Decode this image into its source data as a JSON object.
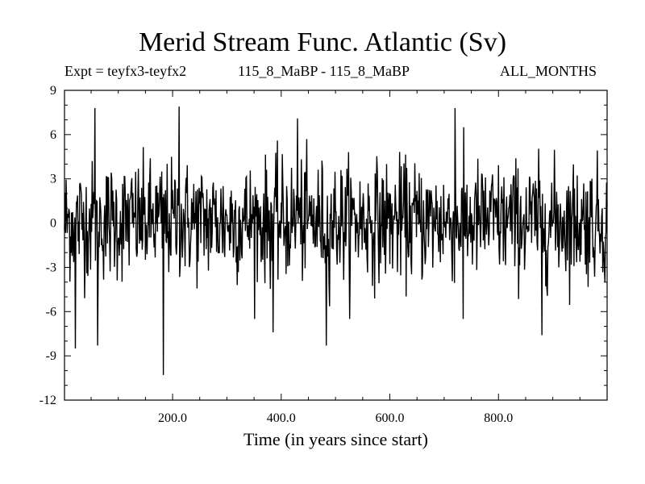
{
  "chart_data": {
    "type": "line",
    "title": "Merid Stream Func. Atlantic (Sv)",
    "subtitle_left": "Expt = teyfx3-teyfx2",
    "subtitle_center": "115_8_MaBP - 115_8_MaBP",
    "subtitle_right": "ALL_MONTHS",
    "xlabel": "Time (in years since start)",
    "ylabel": "",
    "xlim": [
      1,
      1000
    ],
    "ylim": [
      -12,
      9
    ],
    "x_ticks": [
      200,
      400,
      600,
      800
    ],
    "x_tick_labels": [
      "200.0",
      "400.0",
      "600.0",
      "800.0"
    ],
    "y_ticks": [
      9,
      6,
      3,
      0,
      -3,
      -6,
      -9,
      -12
    ],
    "y_tick_labels": [
      "9",
      "6",
      "3",
      "0",
      "-3",
      "-6",
      "-9",
      "-12"
    ],
    "zero_line": true,
    "series": [
      {
        "name": "Merid Stream Func. Atlantic",
        "n_points": 1000,
        "typical_std": 2.0,
        "min": -10.3,
        "max": 7.9,
        "extremes": [
          {
            "x": 21,
            "y": -8.5
          },
          {
            "x": 57,
            "y": 7.8
          },
          {
            "x": 62,
            "y": -8.3
          },
          {
            "x": 183,
            "y": -10.3
          },
          {
            "x": 212,
            "y": 7.9
          },
          {
            "x": 385,
            "y": -7.4
          },
          {
            "x": 430,
            "y": 7.1
          },
          {
            "x": 483,
            "y": -8.3
          },
          {
            "x": 720,
            "y": 7.8
          },
          {
            "x": 735,
            "y": -6.5
          },
          {
            "x": 880,
            "y": -7.6
          }
        ]
      }
    ]
  }
}
